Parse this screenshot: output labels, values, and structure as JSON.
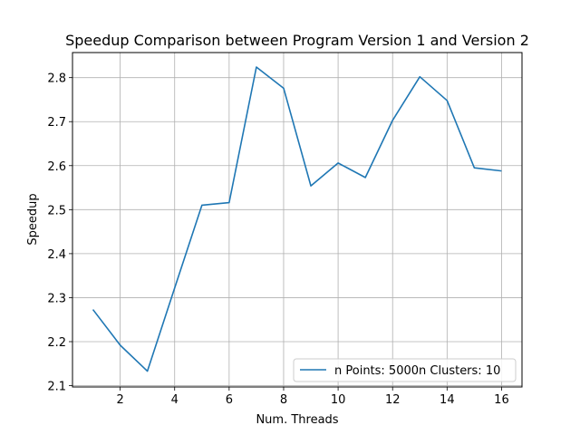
{
  "chart_data": {
    "type": "line",
    "title": "Speedup Comparison between Program Version 1 and Version 2",
    "xlabel": "Num. Threads",
    "ylabel": "Speedup",
    "xlim": [
      0.25,
      16.75
    ],
    "ylim": [
      2.097,
      2.857
    ],
    "xticks": [
      2,
      4,
      6,
      8,
      10,
      12,
      14,
      16
    ],
    "yticks": [
      2.1,
      2.2,
      2.3,
      2.4,
      2.5,
      2.6,
      2.7,
      2.8
    ],
    "grid": true,
    "legend_position": "lower right",
    "series": [
      {
        "name": "n Points: 5000n Clusters: 10",
        "color": "#1f77b4",
        "x": [
          1,
          2,
          3,
          4,
          5,
          6,
          7,
          8,
          9,
          10,
          11,
          12,
          13,
          14,
          15,
          16
        ],
        "y": [
          2.273,
          2.192,
          2.133,
          2.322,
          2.51,
          2.516,
          2.824,
          2.776,
          2.554,
          2.606,
          2.573,
          2.703,
          2.802,
          2.748,
          2.595,
          2.588
        ]
      }
    ]
  }
}
